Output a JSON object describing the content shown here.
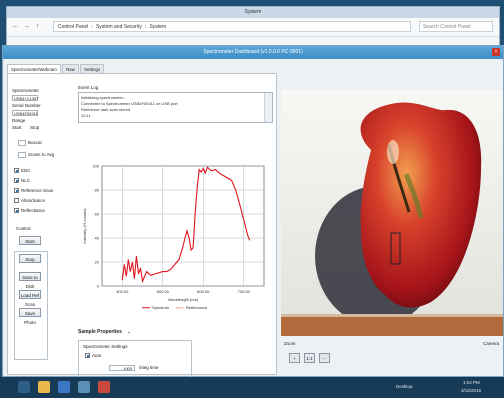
{
  "explorer": {
    "title": "System",
    "breadcrumb": [
      "Control Panel",
      "System and Security",
      "System"
    ],
    "search_placeholder": "Search Control Panel"
  },
  "app": {
    "title": "Spectrometer Dashboard (v1.0.0.0 PC-9501)",
    "tabs": [
      {
        "label": "Spectrometer/Webcam",
        "active": true
      },
      {
        "label": "Raw",
        "active": false
      },
      {
        "label": "Settings",
        "active": false
      }
    ]
  },
  "left_panel": {
    "spectrometer_label": "Spectrometer",
    "device_id": "USB4+C1357",
    "serial_label": "Serial Number",
    "serial": "USB4F05311",
    "range_label": "Range",
    "start_label": "Start",
    "stop_label": "Stop",
    "boxcar_label": "Boxcar",
    "scan_timing_label": "Scans to Avg",
    "checkboxes": [
      {
        "label": "EDC",
        "checked": true
      },
      {
        "label": "NLC",
        "checked": true
      },
      {
        "label": "Reference Scan",
        "checked": true
      },
      {
        "label": "Absorbance",
        "checked": false
      },
      {
        "label": "Reflectance",
        "checked": true
      }
    ],
    "controls_label": "Control",
    "buttons": [
      "Start",
      "Stop",
      "Save to Disk",
      "Load Ref Scan",
      "Save Photo"
    ]
  },
  "event_log": {
    "label": "Event Log",
    "lines": [
      "Initializing spectrometer...",
      "Connected to Spectrometer USB4F05311 on USB port",
      "Reference dark scan stored",
      "10.11"
    ]
  },
  "sample_properties": {
    "header": "Sample Properties",
    "group_label": "Spectrometer Settings",
    "auto_label": "Auto",
    "auto_checked": true,
    "value": "1000",
    "unit": "integ time"
  },
  "zoom": {
    "label": "Zoom",
    "buttons": [
      "+",
      "1:1",
      "−"
    ],
    "right_label": "Camera"
  },
  "taskbar": {
    "tray_text": "Desktop",
    "time": "1:04 PM",
    "date": "3/15/2016"
  },
  "colors": {
    "series_main": "#e0141e",
    "title_bar": "#3d8cc4",
    "taskbar": "#173a56"
  },
  "chart_data": {
    "type": "line",
    "title": "",
    "xlabel": "Wavelength (nm)",
    "ylabel": "Intensity (% counts)",
    "x_ticks": [
      "400.00",
      "500.00",
      "600.00",
      "700.00"
    ],
    "y_ticks": [
      "0",
      "20",
      "40",
      "60",
      "80",
      "100"
    ],
    "xlim": [
      350,
      750
    ],
    "ylim": [
      0,
      100
    ],
    "grid": true,
    "legend": "bottom",
    "legend_entries": [
      "Spectrum",
      "Reflectance"
    ],
    "series": [
      {
        "name": "Spectrum",
        "x": [
          400,
          405,
          410,
          415,
          420,
          425,
          430,
          435,
          440,
          445,
          450,
          460,
          470,
          480,
          490,
          500,
          510,
          520,
          530,
          540,
          550,
          555,
          560,
          565,
          570,
          575,
          580,
          585,
          590,
          595,
          600,
          605,
          610,
          620,
          630,
          640,
          650,
          660,
          670,
          680,
          690,
          700,
          710,
          715
        ],
        "y": [
          5,
          18,
          8,
          22,
          12,
          20,
          6,
          25,
          10,
          15,
          4,
          12,
          9,
          10,
          11,
          12,
          12,
          14,
          18,
          22,
          33,
          40,
          46,
          40,
          30,
          32,
          60,
          82,
          97,
          95,
          98,
          94,
          99,
          96,
          97,
          94,
          92,
          90,
          88,
          80,
          68,
          55,
          42,
          38
        ]
      }
    ]
  }
}
